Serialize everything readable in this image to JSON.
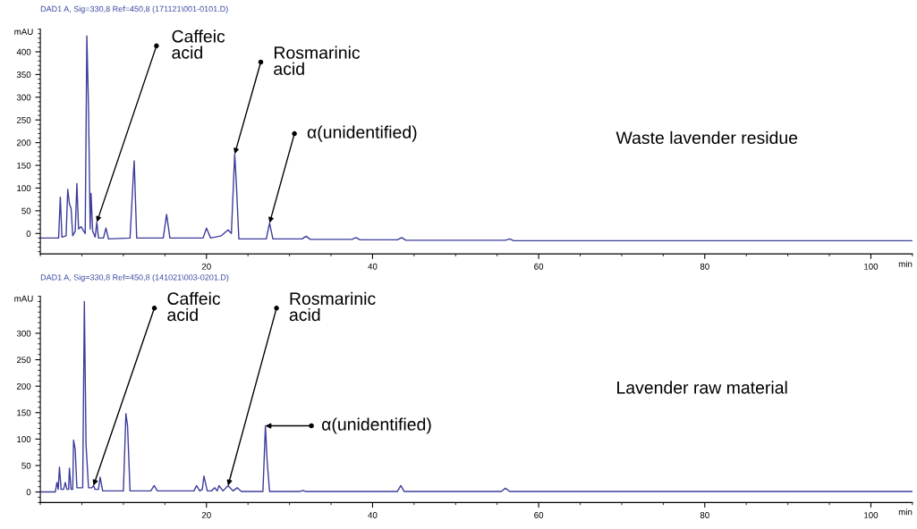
{
  "chart_data": [
    {
      "type": "line",
      "title": "DAD1 A, Sig=330,8 Ref=450,8 (171121\\001-0101.D)",
      "xlabel": "min",
      "ylabel": "mAU",
      "xlim": [
        0,
        105
      ],
      "xticks": [
        20,
        40,
        60,
        80,
        100
      ],
      "ylim": [
        -45,
        450
      ],
      "yticks": [
        0,
        50,
        100,
        150,
        200,
        250,
        300,
        350,
        400
      ],
      "grid": false,
      "legend": false,
      "marker": "none",
      "line_style": "solid",
      "series": [
        {
          "color": "#3c3c9c",
          "x": [
            0,
            2.2,
            2.4,
            2.6,
            3.1,
            3.3,
            3.5,
            3.7,
            3.9,
            4.2,
            4.4,
            4.6,
            4.9,
            5.4,
            5.6,
            5.8,
            6.0,
            6.1,
            6.3,
            6.6,
            6.8,
            7.0,
            7.6,
            7.9,
            8.2,
            10.8,
            11.2,
            11.3,
            11.6,
            14.8,
            15.2,
            15.6,
            19.6,
            20.0,
            20.5,
            21.8,
            22.1,
            22.6,
            23.0,
            23.4,
            23.6,
            23.9,
            27.2,
            27.6,
            28.0,
            31.5,
            32,
            32.5,
            37.5,
            38,
            38.5,
            43,
            43.5,
            44,
            56,
            56.5,
            57,
            105
          ],
          "values": [
            -10,
            -10,
            80,
            -8,
            -5,
            97,
            65,
            55,
            -5,
            5,
            110,
            10,
            15,
            0,
            435,
            275,
            10,
            88,
            5,
            -8,
            25,
            -10,
            -10,
            12,
            -12,
            -10,
            130,
            160,
            -10,
            -10,
            42,
            -10,
            -10,
            12,
            -10,
            -5,
            0,
            8,
            0,
            175,
            110,
            -12,
            -12,
            23,
            -12,
            -12,
            -6,
            -13,
            -13,
            -9,
            -14,
            -14,
            -9,
            -15,
            -15,
            -12,
            -16,
            -16
          ]
        }
      ],
      "annotations": [
        {
          "text": "Caffeic\nacid",
          "x": 6.8,
          "y": 25
        },
        {
          "text": "Rosmarinic\nacid",
          "x": 23.4,
          "y": 175
        },
        {
          "text": "α(unidentified)",
          "x": 27.6,
          "y": 23
        },
        "Waste lavender residue"
      ]
    },
    {
      "type": "line",
      "title": "DAD1 A, Sig=330,8 Ref=450,8 (141021\\003-0201.D)",
      "xlabel": "min",
      "ylabel": "mAU",
      "xlim": [
        0,
        105
      ],
      "xticks": [
        20,
        40,
        60,
        80,
        100
      ],
      "ylim": [
        -20,
        370
      ],
      "yticks": [
        0,
        50,
        100,
        150,
        200,
        250,
        300
      ],
      "grid": false,
      "legend": false,
      "marker": "none",
      "line_style": "solid",
      "series": [
        {
          "color": "#3c3c9c",
          "x": [
            0,
            1.8,
            2.0,
            2.15,
            2.3,
            2.5,
            2.8,
            3.0,
            3.2,
            3.4,
            3.5,
            3.7,
            3.9,
            4.0,
            4.2,
            4.4,
            5.1,
            5.3,
            5.5,
            5.8,
            6.2,
            6.4,
            6.6,
            7.0,
            7.2,
            7.5,
            10.0,
            10.3,
            10.5,
            10.8,
            13.3,
            13.7,
            14.1,
            18.5,
            18.8,
            19.2,
            19.5,
            19.7,
            20.1,
            20.6,
            21.0,
            21.3,
            21.5,
            22.0,
            22.6,
            23.2,
            23.7,
            24.2,
            26.8,
            27.1,
            27.3,
            27.6,
            31.3,
            31.6,
            31.9,
            43.0,
            43.4,
            43.8,
            55.5,
            56.0,
            56.5,
            105
          ],
          "values": [
            0,
            0,
            18,
            5,
            47,
            5,
            5,
            18,
            5,
            5,
            45,
            5,
            5,
            98,
            80,
            8,
            8,
            360,
            90,
            8,
            8,
            12,
            5,
            5,
            28,
            2,
            2,
            148,
            125,
            2,
            2,
            12,
            2,
            2,
            12,
            2,
            5,
            30,
            2,
            2,
            8,
            2,
            12,
            2,
            12,
            2,
            8,
            1,
            1,
            125,
            60,
            1,
            1,
            3,
            1,
            1,
            12,
            1,
            1,
            7,
            1,
            1
          ]
        }
      ],
      "annotations": [
        {
          "text": "Caffeic\nacid",
          "x": 6.4,
          "y": 12
        },
        {
          "text": "Rosmarinic\nacid",
          "x": 22.6,
          "y": 12
        },
        {
          "text": "α(unidentified)",
          "x": 27.1,
          "y": 125
        },
        "Lavender raw material"
      ]
    }
  ]
}
